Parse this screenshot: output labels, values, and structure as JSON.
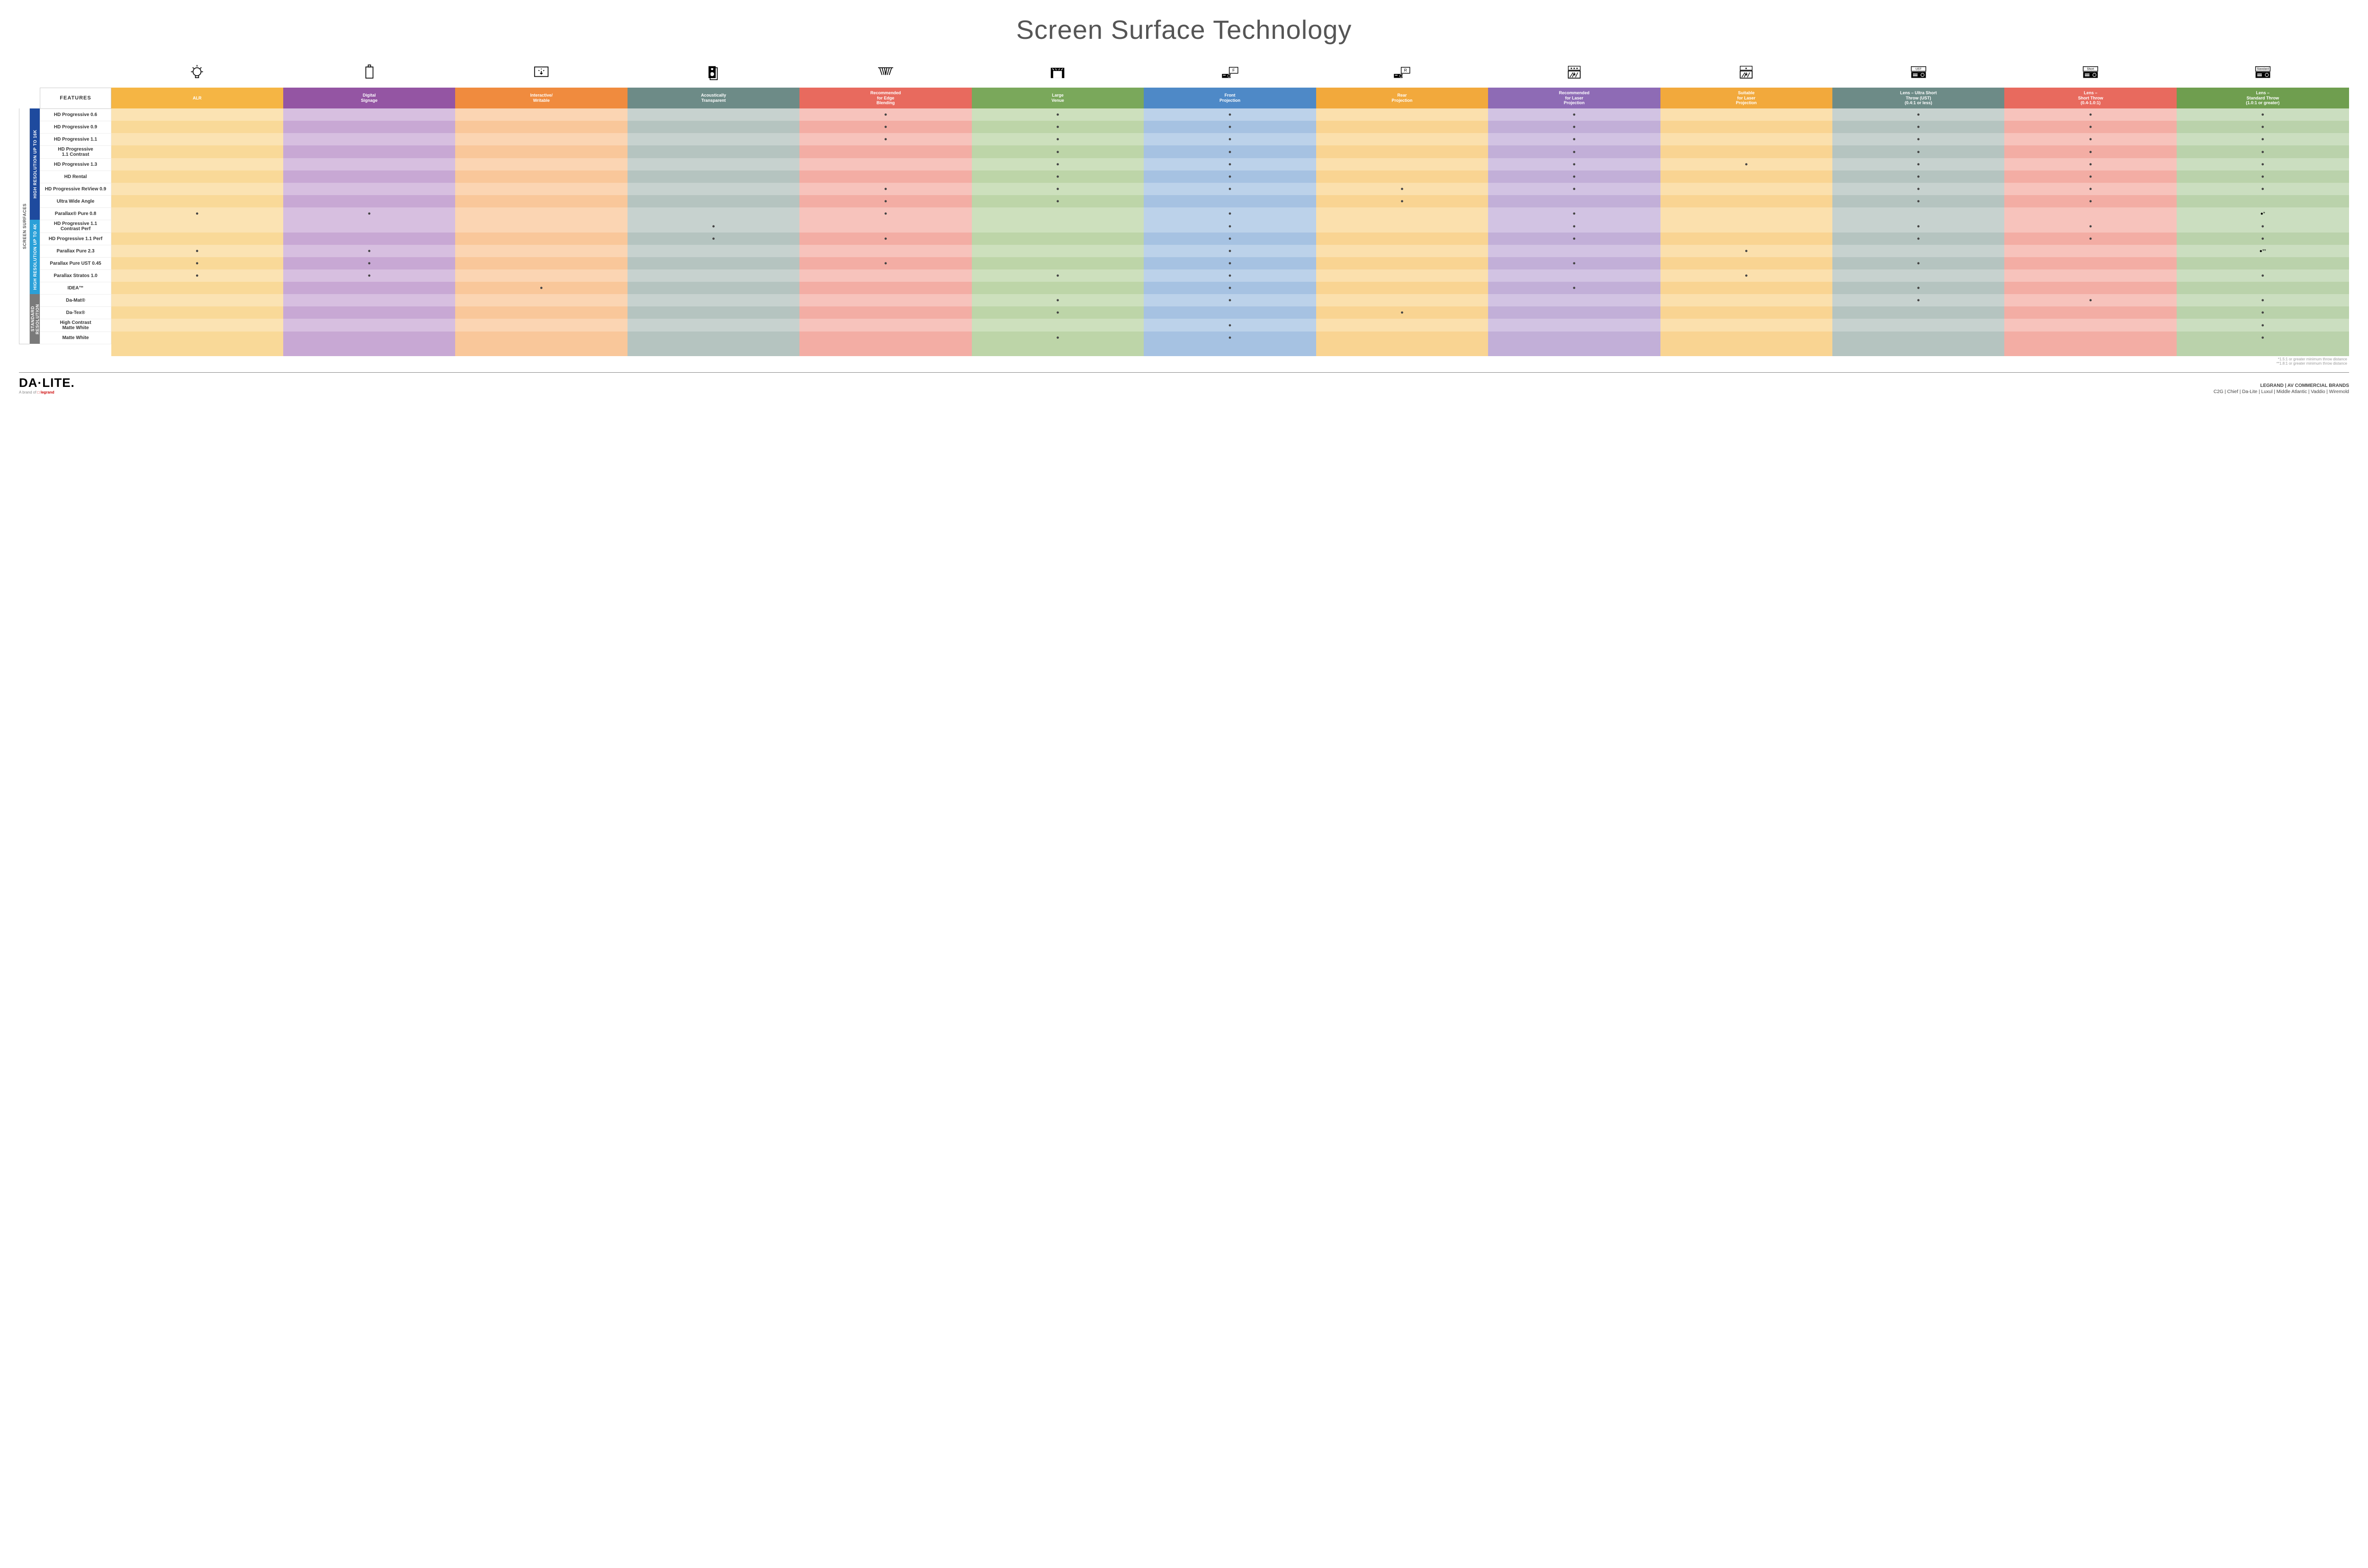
{
  "title": "Screen Surface Technology",
  "colors": {
    "alr": "#f5b544",
    "dig": "#9455a3",
    "int": "#f08b3e",
    "acou": "#6d8b87",
    "edge": "#e86a5e",
    "large": "#7aa85b",
    "front": "#4e89c7",
    "rear": "#f2a93c",
    "reclaser": "#8e6bb5",
    "suitlaser": "#f2a93c",
    "ust": "#6d8b87",
    "short": "#e86a5e",
    "std": "#6f9e4f",
    "grp16k": "#1e4a9e",
    "grp4k": "#2aa0d8",
    "grpstd": "#7a7a7a"
  },
  "tints": {
    "alr": [
      "#fbe3b3",
      "#f9d998"
    ],
    "dig": [
      "#d7bfe0",
      "#c8a8d4"
    ],
    "int": [
      "#fbd5b3",
      "#f9c79a"
    ],
    "acou": [
      "#c7d2cf",
      "#b5c4c0"
    ],
    "edge": [
      "#f7c3bc",
      "#f3ada4"
    ],
    "large": [
      "#cde0bd",
      "#bdd5a8"
    ],
    "front": [
      "#bcd2ea",
      "#a6c2e2"
    ],
    "rear": [
      "#fbe0ad",
      "#f9d492"
    ],
    "reclaser": [
      "#d2c3e3",
      "#c2afd8"
    ],
    "suitlaser": [
      "#fbe0ad",
      "#f9d492"
    ],
    "ust": [
      "#c7d2cf",
      "#b5c4c0"
    ],
    "short": [
      "#f7c3bc",
      "#f3ada4"
    ],
    "std": [
      "#cbdec0",
      "#bad2ab"
    ]
  },
  "feat_hd": "FEATURES",
  "cols": [
    {
      "k": "alr",
      "label": "ALR"
    },
    {
      "k": "dig",
      "label": "Digital\nSignage"
    },
    {
      "k": "int",
      "label": "Interactive/\nWritable"
    },
    {
      "k": "acou",
      "label": "Acoustically\nTransparent"
    },
    {
      "k": "edge",
      "label": "Recommended\nfor Edge\nBlending"
    },
    {
      "k": "large",
      "label": "Large\nVenue"
    },
    {
      "k": "front",
      "label": "Front\nProjection"
    },
    {
      "k": "rear",
      "label": "Rear\nProjection"
    },
    {
      "k": "reclaser",
      "label": "Recommended\nfor Laser\nProjection"
    },
    {
      "k": "suitlaser",
      "label": "Suitable\nfor Laser\nProjection"
    },
    {
      "k": "ust",
      "label": "Lens – Ultra Short\nThrow (UST)\n(0.4:1 or less)"
    },
    {
      "k": "short",
      "label": "Lens –\nShort Throw\n(0.4-1.0:1)"
    },
    {
      "k": "std",
      "label": "Lens –\nStandard Throw\n(1.0:1 or greater)"
    }
  ],
  "outer_label": "SCREEN SURFACES",
  "groups": [
    {
      "k": "grp16k",
      "label": "HIGH RESOLUTION UP TO 16K",
      "rows": [
        {
          "n": "HD Progressive 0.6",
          "d": [
            "",
            "",
            "",
            "",
            "●",
            "●",
            "●",
            "",
            "●",
            "",
            "●",
            "●",
            "●"
          ]
        },
        {
          "n": "HD Progressive 0.9",
          "d": [
            "",
            "",
            "",
            "",
            "●",
            "●",
            "●",
            "",
            "●",
            "",
            "●",
            "●",
            "●"
          ]
        },
        {
          "n": "HD Progressive 1.1",
          "d": [
            "",
            "",
            "",
            "",
            "●",
            "●",
            "●",
            "",
            "●",
            "",
            "●",
            "●",
            "●"
          ]
        },
        {
          "n": "HD Progressive\n1.1 Contrast",
          "d": [
            "",
            "",
            "",
            "",
            "",
            "●",
            "●",
            "",
            "●",
            "",
            "●",
            "●",
            "●"
          ]
        },
        {
          "n": "HD Progressive 1.3",
          "d": [
            "",
            "",
            "",
            "",
            "",
            "●",
            "●",
            "",
            "●",
            "●",
            "●",
            "●",
            "●"
          ]
        },
        {
          "n": "HD Rental",
          "d": [
            "",
            "",
            "",
            "",
            "",
            "●",
            "●",
            "",
            "●",
            "",
            "●",
            "●",
            "●"
          ]
        },
        {
          "n": "HD Progressive ReView 0.9",
          "d": [
            "",
            "",
            "",
            "",
            "●",
            "●",
            "●",
            "●",
            "●",
            "",
            "●",
            "●",
            "●"
          ]
        },
        {
          "n": "Ultra Wide Angle",
          "d": [
            "",
            "",
            "",
            "",
            "●",
            "●",
            "",
            "●",
            "",
            "",
            "●",
            "●",
            ""
          ]
        },
        {
          "n": "Parallax® Pure 0.8",
          "d": [
            "●",
            "●",
            "",
            "",
            "●",
            "",
            "●",
            "",
            "●",
            "",
            "",
            "",
            "●*"
          ]
        }
      ]
    },
    {
      "k": "grp4k",
      "label": "HIGH RESOLUTION UP TO 4K",
      "rows": [
        {
          "n": "HD Progressive 1.1\nContrast Perf",
          "d": [
            "",
            "",
            "",
            "●",
            "",
            "",
            "●",
            "",
            "●",
            "",
            "●",
            "●",
            "●"
          ]
        },
        {
          "n": "HD Progressive 1.1 Perf",
          "d": [
            "",
            "",
            "",
            "●",
            "●",
            "",
            "●",
            "",
            "●",
            "",
            "●",
            "●",
            "●"
          ]
        },
        {
          "n": "Parallax Pure 2.3",
          "d": [
            "●",
            "●",
            "",
            "",
            "",
            "",
            "●",
            "",
            "",
            "●",
            "",
            "",
            "●**"
          ]
        },
        {
          "n": "Parallax Pure UST 0.45",
          "d": [
            "●",
            "●",
            "",
            "",
            "●",
            "",
            "●",
            "",
            "●",
            "",
            "●",
            "",
            ""
          ]
        },
        {
          "n": "Parallax Stratos 1.0",
          "d": [
            "●",
            "●",
            "",
            "",
            "",
            "●",
            "●",
            "",
            "",
            "●",
            "",
            "",
            "●"
          ]
        },
        {
          "n": "IDEA™",
          "d": [
            "",
            "",
            "●",
            "",
            "",
            "",
            "●",
            "",
            "●",
            "",
            "●",
            "",
            ""
          ]
        }
      ]
    },
    {
      "k": "grpstd",
      "label": "STANDARD\nRESOLUTION",
      "rows": [
        {
          "n": "Da-Mat®",
          "d": [
            "",
            "",
            "",
            "",
            "",
            "●",
            "●",
            "",
            "",
            "",
            "●",
            "●",
            "●"
          ]
        },
        {
          "n": "Da-Tex®",
          "d": [
            "",
            "",
            "",
            "",
            "",
            "●",
            "",
            "●",
            "",
            "",
            "",
            "",
            "●"
          ]
        },
        {
          "n": "High Contrast\nMatte White",
          "d": [
            "",
            "",
            "",
            "",
            "",
            "",
            "●",
            "",
            "",
            "",
            "",
            "",
            "●"
          ]
        },
        {
          "n": "Matte White",
          "d": [
            "",
            "",
            "",
            "",
            "",
            "●",
            "●",
            "",
            "",
            "",
            "",
            "",
            "●"
          ]
        }
      ]
    }
  ],
  "notes": [
    "*1.5:1 or greater minimum throw distance",
    "**1.8:1 or greater minimum throw distance"
  ],
  "logo": {
    "main": "DA·LITE.",
    "sub_pre": "A brand of ",
    "sub_b": "□ legrand"
  },
  "brands": {
    "title": "LEGRAND | AV COMMERCIAL BRANDS",
    "list": "C2G  |  Chief  |  Da-Lite  |  Luxul  |  Middle Atlantic  |  Vaddio  |  Wiremold"
  },
  "icons": {
    "alr": "bulb",
    "dig": "signage",
    "int": "touch",
    "acou": "speaker",
    "edge": "blend",
    "large": "venue",
    "front": "projF",
    "rear": "projR",
    "reclaser": "laser3",
    "suitlaser": "laser1",
    "ust": "projUST",
    "short": "projShort",
    "std": "projStd"
  }
}
